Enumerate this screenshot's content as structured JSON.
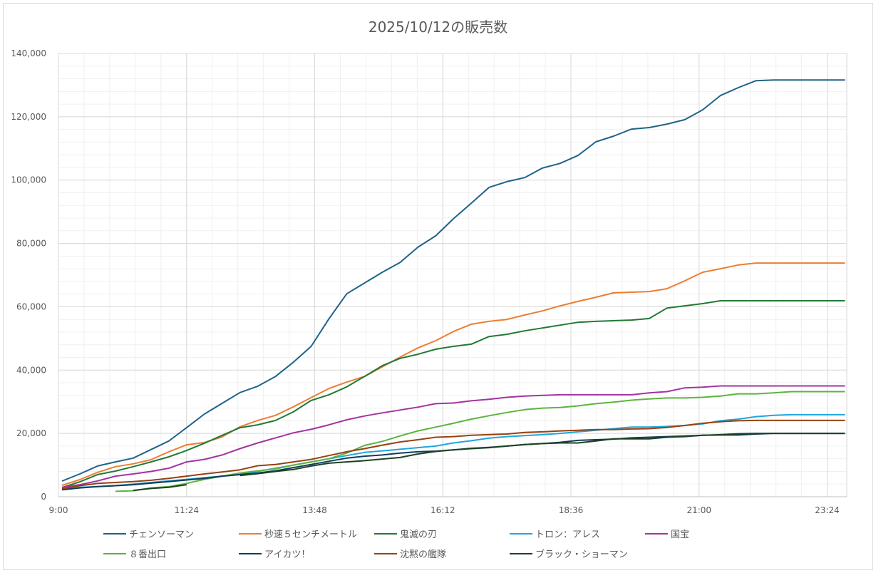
{
  "chart_data": {
    "type": "line",
    "title": "2025/10/12の販売数",
    "xlabel": "",
    "ylabel": "",
    "x_start": "9:00",
    "x_step_minutes": 20,
    "x_count": 45,
    "xlim_minutes": [
      540,
      1426
    ],
    "ylim": [
      0,
      140000
    ],
    "y_ticks": [
      "0",
      "20,000",
      "40,000",
      "60,000",
      "80,000",
      "100,000",
      "120,000",
      "140,000"
    ],
    "x_ticks": [
      "9:00",
      "11:24",
      "13:48",
      "16:12",
      "18:36",
      "21:00",
      "23:24"
    ],
    "grid": true,
    "legend_position": "bottom",
    "series": [
      {
        "name": "チェンソーマン",
        "color": "#1f6388",
        "values": [
          4950,
          7200,
          9700,
          11000,
          12200,
          14900,
          17600,
          21800,
          26100,
          29500,
          32900,
          34900,
          38000,
          42500,
          47500,
          56200,
          64100,
          67500,
          70900,
          74000,
          78800,
          82400,
          87800,
          92700,
          97700,
          99500,
          100800,
          103800,
          105300,
          107800,
          112100,
          113900,
          116100,
          116600,
          117700,
          119100,
          122200,
          126700,
          129200,
          131400,
          131600
        ]
      },
      {
        "name": "秒速５センチメートル",
        "color": "#ed7d31",
        "values": [
          3600,
          5400,
          7700,
          9500,
          10400,
          11700,
          14200,
          16400,
          17100,
          18900,
          22100,
          24100,
          25700,
          28400,
          31300,
          34200,
          36200,
          38000,
          41000,
          44100,
          47000,
          49300,
          52200,
          54500,
          55400,
          56000,
          57400,
          58700,
          60300,
          61700,
          63000,
          64400,
          64600,
          64800,
          65700,
          68200,
          70900,
          72000,
          73200,
          73800
        ]
      },
      {
        "name": "鬼滅の刃",
        "color": "#217a35",
        "values": [
          2900,
          4700,
          7000,
          8100,
          9500,
          11000,
          12600,
          14600,
          16900,
          19400,
          21800,
          22700,
          24100,
          26800,
          30400,
          32200,
          34700,
          38000,
          41400,
          43700,
          45000,
          46600,
          47500,
          48200,
          50600,
          51300,
          52400,
          53300,
          54200,
          55100,
          55400,
          55600,
          55800,
          56300,
          59600,
          60300,
          61000,
          61900
        ]
      },
      {
        "name": "トロン：アレス",
        "color": "#1ea6df",
        "values": [
          2500,
          3000,
          3200,
          3500,
          4000,
          4500,
          5000,
          5500,
          6000,
          6500,
          7000,
          8000,
          9000,
          10000,
          11000,
          12000,
          13000,
          14000,
          14500,
          15000,
          15500,
          16000,
          17000,
          17700,
          18500,
          19000,
          19300,
          19600,
          20000,
          20500,
          21000,
          21500,
          22000,
          22000,
          22200,
          22500,
          23000,
          24000,
          24500,
          25300,
          25700,
          25900
        ]
      },
      {
        "name": "国宝",
        "color": "#a2349f",
        "values": [
          3000,
          3800,
          5000,
          6500,
          7200,
          8000,
          9000,
          11000,
          11800,
          13200,
          15200,
          17000,
          18600,
          20200,
          21300,
          22700,
          24300,
          25500,
          26500,
          27400,
          28300,
          29400,
          29600,
          30300,
          30800,
          31400,
          31800,
          32000,
          32200,
          32200,
          32200,
          32200,
          32200,
          32800,
          33200,
          34400,
          34600,
          35000
        ]
      },
      {
        "name": "８番出口",
        "color": "#5cb43e",
        "values": [
          null,
          null,
          null,
          1700,
          1900,
          2800,
          3200,
          4200,
          5500,
          6500,
          7500,
          8200,
          8800,
          10000,
          11000,
          12000,
          13800,
          16200,
          17500,
          19200,
          20800,
          22000,
          23200,
          24500,
          25600,
          26600,
          27500,
          28000,
          28200,
          28700,
          29400,
          29900,
          30500,
          30900,
          31200,
          31200,
          31400,
          31800,
          32500,
          32500,
          32800,
          33200
        ]
      },
      {
        "name": "アイカツ！",
        "color": "#123c5a",
        "values": [
          2200,
          2800,
          3200,
          3500,
          3800,
          4300,
          4800,
          5300,
          5800,
          6500,
          7000,
          7500,
          8200,
          9200,
          10200,
          11200,
          12200,
          12800,
          13200,
          13800,
          14200,
          14400,
          14800,
          15300,
          15600,
          16000,
          16500,
          16800,
          17200,
          17800,
          18000,
          18200,
          18600,
          18800,
          19000,
          19200,
          19400,
          19500,
          19500,
          19800,
          20000
        ]
      },
      {
        "name": "沈黙の艦隊",
        "color": "#974112",
        "values": [
          2500,
          3500,
          4200,
          4500,
          4800,
          5200,
          5800,
          6500,
          7200,
          7800,
          8500,
          9800,
          10200,
          11000,
          11800,
          13000,
          14200,
          15200,
          16300,
          17300,
          18000,
          18800,
          19000,
          19400,
          19600,
          19800,
          20300,
          20500,
          20800,
          21000,
          21200,
          21200,
          21400,
          21500,
          21900,
          22500,
          23200,
          23700,
          24000,
          24100
        ]
      },
      {
        "name": "ブラック・ショーマン",
        "color": "#1c4222",
        "values": [
          null,
          null,
          null,
          null,
          2000,
          2600,
          3000,
          3800,
          null,
          null,
          6700,
          7300,
          8000,
          8600,
          9700,
          10600,
          11000,
          11400,
          11900,
          12400,
          13500,
          14300,
          14800,
          15200,
          15500,
          16000,
          16500,
          16800,
          17000,
          17000,
          17600,
          18300,
          18300,
          18300,
          18800,
          19000,
          19400,
          19600,
          19900,
          20000
        ]
      }
    ]
  }
}
